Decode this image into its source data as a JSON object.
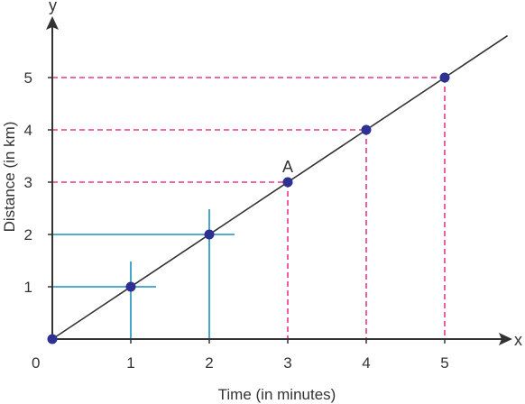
{
  "chart_data": {
    "type": "line",
    "xlabel": "Time (in minutes)",
    "ylabel": "Distance (in km)",
    "x_axis_name": "x",
    "y_axis_name": "y",
    "origin_label": "0",
    "xlim": [
      0,
      5.8
    ],
    "ylim": [
      0,
      6.0
    ],
    "x_ticks": [
      "1",
      "2",
      "3",
      "4",
      "5"
    ],
    "y_ticks": [
      "1",
      "2",
      "3",
      "4",
      "5"
    ],
    "series": [
      {
        "points": [
          [
            0,
            0
          ],
          [
            1,
            1
          ],
          [
            2,
            2
          ],
          [
            3,
            3
          ],
          [
            4,
            4
          ],
          [
            5,
            5
          ]
        ]
      }
    ],
    "line_extends_to_x": 5.8,
    "annotations": [
      {
        "text": "A",
        "x": 3,
        "y": 3
      }
    ],
    "guides": {
      "solid_blue": [
        1,
        2
      ],
      "dashed_pink": [
        3,
        4,
        5
      ]
    },
    "grid": false,
    "colors": {
      "line": "#333333",
      "points": "#2e3192",
      "solid_guides": "#1b8fc0",
      "dashed_guides": "#e8358a",
      "axes": "#333333"
    }
  }
}
